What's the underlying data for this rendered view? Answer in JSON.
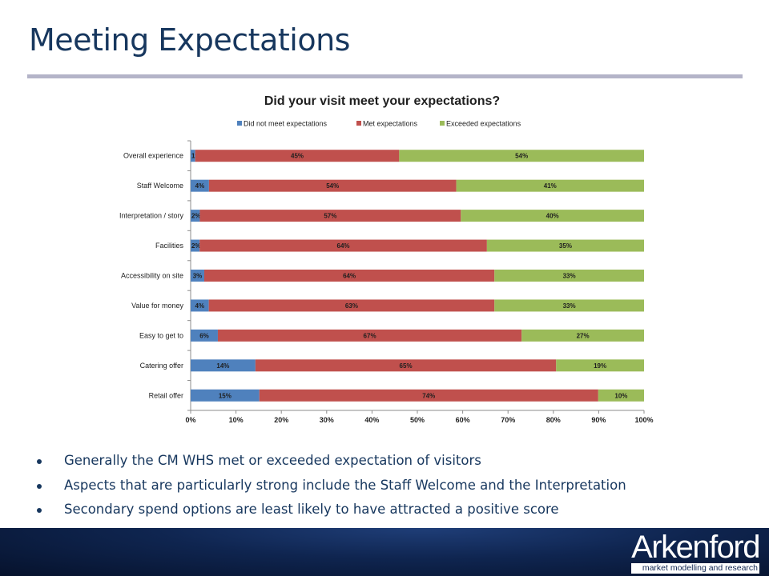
{
  "slide": {
    "title": "Meeting Expectations",
    "bullets": [
      "Generally the CM WHS met or exceeded expectation of visitors",
      "Aspects that are particularly strong include the Staff Welcome and the Interpretation",
      "Secondary spend options are least likely to have attracted a positive score"
    ]
  },
  "footer": {
    "logo_word": "Arkenford",
    "logo_tagline": "market modelling and research"
  },
  "chart_data": {
    "type": "bar",
    "orientation": "horizontal",
    "stacked": true,
    "percent_stacked": true,
    "title": "Did your visit meet your expectations?",
    "legend_position": "top",
    "categories": [
      "Overall experience",
      "Staff Welcome",
      "Interpretation / story",
      "Facilities",
      "Accessibility on site",
      "Value for money",
      "Easy to get to",
      "Catering offer",
      "Retail offer"
    ],
    "series": [
      {
        "name": "Did not meet expectations",
        "color": "#4f81bd",
        "values": [
          1,
          4,
          2,
          2,
          3,
          4,
          6,
          14,
          15
        ],
        "labels": [
          "1%",
          "4%",
          "2%",
          "2%",
          "3%",
          "4%",
          "6%",
          "14%",
          "15%"
        ]
      },
      {
        "name": "Met expectations",
        "color": "#c0504d",
        "values": [
          45,
          54,
          57,
          64,
          64,
          63,
          67,
          65,
          74
        ],
        "labels": [
          "45%",
          "54%",
          "57%",
          "64%",
          "64%",
          "63%",
          "67%",
          "65%",
          "74%"
        ]
      },
      {
        "name": "Exceeded expectations",
        "color": "#9bbb59",
        "values": [
          54,
          41,
          40,
          35,
          33,
          33,
          27,
          19,
          10
        ],
        "labels": [
          "54%",
          "41%",
          "40%",
          "35%",
          "33%",
          "33%",
          "27%",
          "19%",
          "10%"
        ]
      }
    ],
    "xlim": [
      0,
      100
    ],
    "x_ticks": [
      "0%",
      "10%",
      "20%",
      "30%",
      "40%",
      "50%",
      "60%",
      "70%",
      "80%",
      "90%",
      "100%"
    ],
    "grid": false
  }
}
